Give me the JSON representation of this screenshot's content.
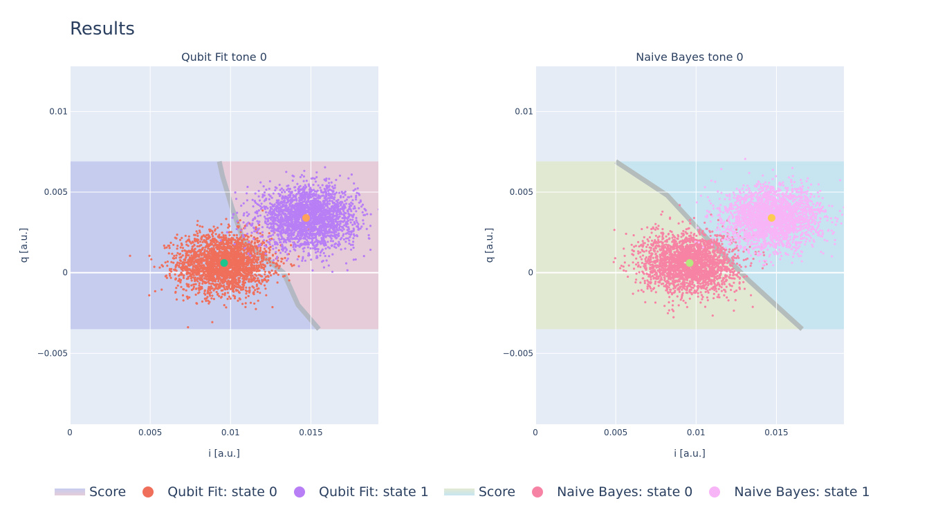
{
  "page": {
    "title": "Results"
  },
  "chart_data": [
    {
      "type": "scatter",
      "title": "Qubit Fit tone 0",
      "xlabel": "i [a.u.]",
      "ylabel": "q [a.u.]",
      "xlim": [
        0,
        0.0192
      ],
      "ylim": [
        -0.0094,
        0.0128
      ],
      "xticks": [
        0,
        0.005,
        0.01,
        0.015
      ],
      "xtick_labels": [
        "0",
        "0.005",
        "0.01",
        "0.015"
      ],
      "yticks": [
        -0.005,
        0,
        0.005,
        0.01
      ],
      "ytick_labels": [
        "−0.005",
        "0",
        "0.005",
        "0.01"
      ],
      "grid": true,
      "score_region": {
        "x": [
          0,
          0.0192
        ],
        "y": [
          -0.0035,
          0.0069
        ]
      },
      "boundary": [
        [
          0.0093,
          0.0069
        ],
        [
          0.0095,
          0.006
        ],
        [
          0.0101,
          0.004
        ],
        [
          0.0108,
          0.002
        ],
        [
          0.0133,
          0.0
        ],
        [
          0.0142,
          -0.002
        ],
        [
          0.0155,
          -0.0035
        ]
      ],
      "region_colors": {
        "state0": "#c6ccee",
        "state1": "#e6ccd9",
        "boundary": "#b4b8c2"
      },
      "series": [
        {
          "name": "Qubit Fit: state 0",
          "color": "#ef6f5b",
          "center": [
            0.0096,
            0.0006
          ],
          "spread": [
            0.00145,
            0.00095
          ],
          "count": 2400
        },
        {
          "name": "Qubit Fit: state 1",
          "color": "#b77ef5",
          "center": [
            0.0148,
            0.0034
          ],
          "spread": [
            0.0015,
            0.00095
          ],
          "count": 2400
        }
      ],
      "centers": [
        {
          "x": 0.0096,
          "y": 0.0006,
          "color": "#1ec48e"
        },
        {
          "x": 0.0147,
          "y": 0.0034,
          "color": "#ffa15a"
        }
      ]
    },
    {
      "type": "scatter",
      "title": "Naive Bayes tone 0",
      "xlabel": "i [a.u.]",
      "ylabel": "q [a.u.]",
      "xlim": [
        0,
        0.0192
      ],
      "ylim": [
        -0.0094,
        0.0128
      ],
      "xticks": [
        0,
        0.005,
        0.01,
        0.015
      ],
      "xtick_labels": [
        "0",
        "0.005",
        "0.01",
        "0.015"
      ],
      "yticks": [
        -0.005,
        0,
        0.005,
        0.01
      ],
      "ytick_labels": [
        "−0.005",
        "0",
        "0.005",
        "0.01"
      ],
      "grid": true,
      "score_region": {
        "x": [
          0,
          0.0192
        ],
        "y": [
          -0.0035,
          0.0069
        ]
      },
      "boundary": [
        [
          0.005,
          0.0069
        ],
        [
          0.0082,
          0.0048
        ],
        [
          0.0108,
          0.002
        ],
        [
          0.0133,
          -0.0005
        ],
        [
          0.0166,
          -0.0035
        ]
      ],
      "region_colors": {
        "state0": "#e2e9d3",
        "state1": "#c6e5f1",
        "boundary": "#b4bcbc"
      },
      "series": [
        {
          "name": "Naive Bayes: state 0",
          "color": "#f783a4",
          "center": [
            0.0096,
            0.0006
          ],
          "spread": [
            0.00145,
            0.00095
          ],
          "count": 2400
        },
        {
          "name": "Naive Bayes: state 1",
          "color": "#f7b4f7",
          "center": [
            0.0148,
            0.0034
          ],
          "spread": [
            0.0015,
            0.00095
          ],
          "count": 2400
        }
      ],
      "centers": [
        {
          "x": 0.0096,
          "y": 0.0006,
          "color": "#b6e880"
        },
        {
          "x": 0.0147,
          "y": 0.0034,
          "color": "#fecb52"
        }
      ]
    }
  ],
  "legend": {
    "items": [
      {
        "label": "Score",
        "kind": "band",
        "colors": [
          "#c6ccee",
          "#e6ccd9"
        ]
      },
      {
        "label": "Qubit Fit: state 0",
        "kind": "dot",
        "color": "#ef6f5b"
      },
      {
        "label": "Qubit Fit: state 1",
        "kind": "dot",
        "color": "#b77ef5"
      },
      {
        "label": "Score",
        "kind": "band",
        "colors": [
          "#e2e9d3",
          "#c6e5f1"
        ]
      },
      {
        "label": "Naive Bayes: state 0",
        "kind": "dot",
        "color": "#f783a4"
      },
      {
        "label": "Naive Bayes: state 1",
        "kind": "dot",
        "color": "#f7b4f7"
      }
    ]
  }
}
